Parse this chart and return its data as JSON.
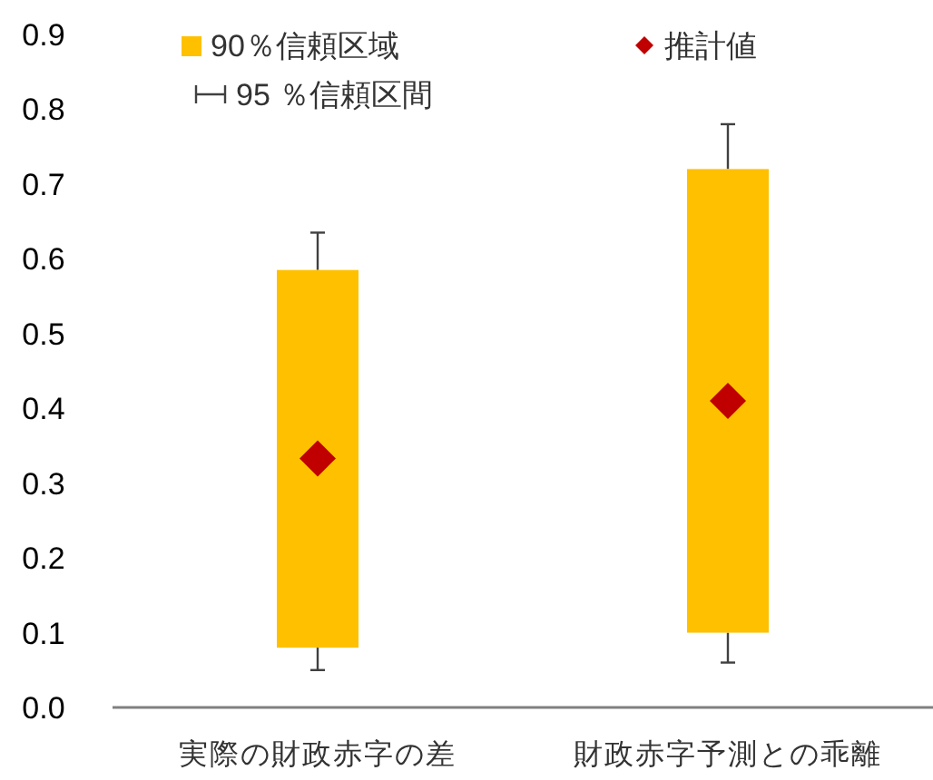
{
  "chart_data": {
    "type": "bar",
    "categories": [
      "実際の財政赤字の差",
      "財政赤字予測との乖離"
    ],
    "ylim": [
      0,
      0.9
    ],
    "yticks": [
      {
        "value": 0,
        "label": "0.0"
      },
      0.1,
      0.2,
      0.3,
      0.4,
      0.5,
      0.6,
      0.7,
      0.8,
      0.9
    ],
    "grid": false,
    "legend": "top",
    "series": [
      {
        "name": "90％信頼区域",
        "color": "#ffc000",
        "base": [
          0.08,
          0.1
        ],
        "values": [
          0.505,
          0.62
        ],
        "errors": [
          [
            0.05,
            0.635
          ],
          [
            0.06,
            0.78
          ]
        ]
      },
      {
        "name": "推計値",
        "type": "scatter",
        "color": "#c00000",
        "marker": "diamond",
        "values": [
          0.333,
          0.41
        ]
      }
    ],
    "annotations": [
      "95 ％信頼区間"
    ]
  }
}
